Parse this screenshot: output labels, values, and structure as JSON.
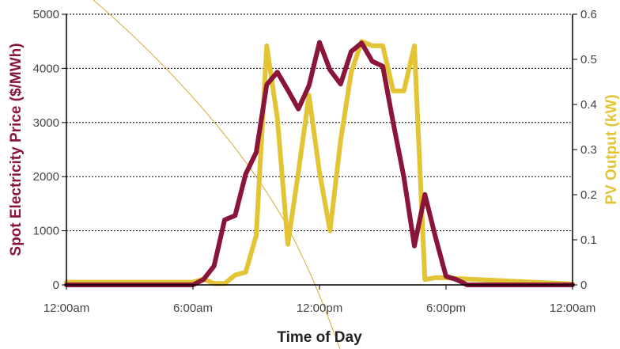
{
  "chart_data": {
    "type": "line",
    "xlabel": "Time of Day",
    "ylabel_left": "Spot Electricity Price ($/MWh)",
    "ylabel_right": "PV Output (kW)",
    "x_ticks": [
      "12:00am",
      "6:00am",
      "12:00pm",
      "6:00pm",
      "12:00am"
    ],
    "y_left_ticks": [
      "0",
      "1000",
      "2000",
      "3000",
      "4000",
      "5000"
    ],
    "y_right_ticks": [
      "0",
      "0.1",
      "0.2",
      "0.3",
      "0.4",
      "0.5",
      "0.6"
    ],
    "x_range_hours": [
      0,
      24
    ],
    "ylim_left": [
      0,
      5000
    ],
    "ylim_right": [
      0,
      0.6
    ],
    "grid": true,
    "colors": {
      "price": "#8b1538",
      "pv": "#e2c436",
      "axis_left_title": "#8b1538",
      "axis_right_title": "#e2c436",
      "decorative_curve": "#d4aa30"
    },
    "series": [
      {
        "axis": "left",
        "color": "#8b1538",
        "x_hours": [
          0,
          6,
          6.5,
          7,
          7.5,
          8,
          8.5,
          9,
          9.5,
          10,
          10.5,
          11,
          11.5,
          12,
          12.5,
          13,
          13.5,
          14,
          14.5,
          15,
          15.5,
          16,
          16.5,
          17,
          17.5,
          18,
          18.5,
          19,
          24
        ],
        "values": [
          0,
          0,
          100,
          350,
          1200,
          1280,
          2050,
          2450,
          3700,
          3930,
          3600,
          3250,
          3680,
          4480,
          3970,
          3710,
          4310,
          4470,
          4130,
          4040,
          2990,
          1990,
          720,
          1670,
          880,
          160,
          100,
          0,
          0
        ]
      },
      {
        "axis": "right",
        "color": "#e2c436",
        "x_hours": [
          0,
          6,
          6.5,
          7,
          7.5,
          8,
          8.5,
          9,
          9.5,
          10,
          10.5,
          11,
          11.5,
          12,
          12.5,
          13,
          13.5,
          14,
          14.5,
          15,
          15.5,
          16,
          16.5,
          17,
          17.5,
          18,
          18.5,
          24
        ],
        "values": [
          0.006,
          0.006,
          0.013,
          0.003,
          0.003,
          0.022,
          0.028,
          0.11,
          0.53,
          0.37,
          0.09,
          0.25,
          0.42,
          0.25,
          0.12,
          0.32,
          0.47,
          0.54,
          0.53,
          0.53,
          0.43,
          0.43,
          0.53,
          0.012,
          0.016,
          0.016,
          0.014,
          0.002
        ]
      }
    ]
  }
}
